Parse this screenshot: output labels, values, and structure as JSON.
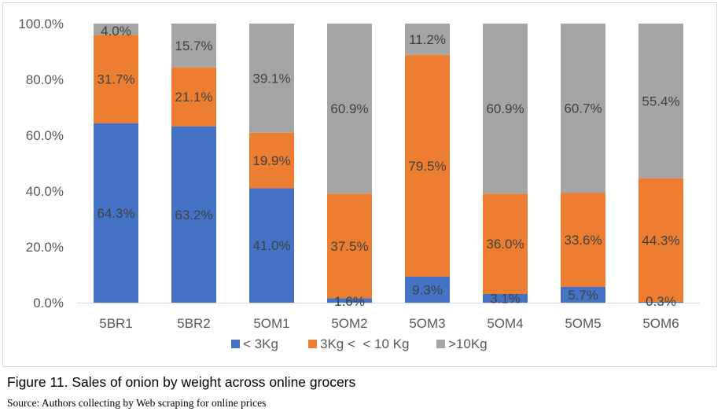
{
  "colors": {
    "lt3": "#4472c4",
    "mid": "#ed7d31",
    "gt10": "#a5a5a5",
    "text": "#595959",
    "grid": "#d9d9d9"
  },
  "caption": "Figure 11. Sales of onion by weight across online grocers",
  "source": "Source: Authors collecting by Web scraping for online prices",
  "chart_data": {
    "type": "bar",
    "stacked": true,
    "categories": [
      "5BR1",
      "5BR2",
      "5OM1",
      "5OM2",
      "5OM3",
      "5OM4",
      "5OM5",
      "5OM6"
    ],
    "series": [
      {
        "name": "< 3Kg",
        "color": "#4472c4",
        "values": [
          64.3,
          63.2,
          41.0,
          1.6,
          9.3,
          3.1,
          5.7,
          0.3
        ],
        "labels": [
          "64.3%",
          "63.2%",
          "41.0%",
          "1.6%",
          "9.3%",
          "3.1%",
          "5.7%",
          "0.3%"
        ]
      },
      {
        "name": "3Kg <  < 10 Kg",
        "color": "#ed7d31",
        "values": [
          31.7,
          21.1,
          19.9,
          37.5,
          79.5,
          36.0,
          33.6,
          44.3
        ],
        "labels": [
          "31.7%",
          "21.1%",
          "19.9%",
          "37.5%",
          "79.5%",
          "36.0%",
          "33.6%",
          "44.3%"
        ]
      },
      {
        "name": ">10Kg",
        "color": "#a5a5a5",
        "values": [
          4.0,
          15.7,
          39.1,
          60.9,
          11.2,
          60.9,
          60.7,
          55.4
        ],
        "labels": [
          "4.0%",
          "15.7%",
          "39.1%",
          "60.9%",
          "11.2%",
          "60.9%",
          "60.7%",
          "55.4%"
        ]
      }
    ],
    "yticks": [
      "0.0%",
      "20.0%",
      "40.0%",
      "60.0%",
      "80.0%",
      "100.0%"
    ],
    "ylim": [
      0,
      100
    ],
    "grid": false,
    "legend": "bottom"
  }
}
